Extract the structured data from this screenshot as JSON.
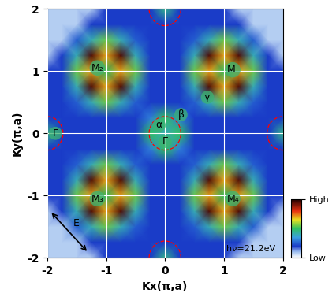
{
  "chart_data": {
    "type": "heatmap",
    "x_label": "Kx(π,a)",
    "y_label": "Ky(π,a)",
    "xlim": [
      -2,
      2
    ],
    "ylim": [
      -2,
      2
    ],
    "xticks": [
      -2,
      -1,
      0,
      1,
      2
    ],
    "yticks": [
      -2,
      -1,
      0,
      1,
      2
    ],
    "grid": true,
    "x": [
      -2,
      -1.75,
      -1.5,
      -1.25,
      -1,
      -0.75,
      -0.5,
      -0.25,
      0,
      0.25,
      0.5,
      0.75,
      1,
      1.25,
      1.5,
      1.75,
      2
    ],
    "y": [
      -2,
      -1.75,
      -1.5,
      -1.25,
      -1,
      -0.75,
      -0.5,
      -0.25,
      0,
      0.25,
      0.5,
      0.75,
      1,
      1.25,
      1.5,
      1.75,
      2
    ],
    "cells": [
      [
        0.08,
        0.08,
        0.08,
        0.08,
        0.2,
        0.2,
        0.2,
        0.2,
        0.45,
        0.2,
        0.2,
        0.2,
        0.2,
        0.08,
        0.08,
        0.08,
        0.08
      ],
      [
        0.08,
        0.08,
        0.08,
        0.2,
        0.2,
        0.2,
        0.2,
        0.2,
        0.2,
        0.2,
        0.2,
        0.2,
        0.2,
        0.2,
        0.08,
        0.08,
        0.08
      ],
      [
        0.08,
        0.08,
        0.25,
        0.4,
        0.55,
        0.4,
        0.25,
        0.2,
        0.2,
        0.2,
        0.25,
        0.4,
        0.55,
        0.4,
        0.25,
        0.08,
        0.08
      ],
      [
        0.08,
        0.2,
        0.4,
        0.95,
        0.7,
        0.95,
        0.4,
        0.2,
        0.2,
        0.2,
        0.4,
        0.95,
        0.7,
        0.95,
        0.4,
        0.2,
        0.08
      ],
      [
        0.2,
        0.2,
        0.55,
        0.7,
        0.5,
        0.7,
        0.55,
        0.2,
        0.2,
        0.2,
        0.55,
        0.7,
        0.5,
        0.7,
        0.55,
        0.2,
        0.2
      ],
      [
        0.2,
        0.2,
        0.4,
        0.95,
        0.7,
        0.95,
        0.4,
        0.2,
        0.2,
        0.2,
        0.4,
        0.95,
        0.7,
        0.95,
        0.4,
        0.2,
        0.2
      ],
      [
        0.2,
        0.2,
        0.25,
        0.4,
        0.55,
        0.4,
        0.25,
        0.2,
        0.2,
        0.2,
        0.25,
        0.4,
        0.55,
        0.4,
        0.25,
        0.2,
        0.2
      ],
      [
        0.2,
        0.2,
        0.2,
        0.2,
        0.2,
        0.2,
        0.2,
        0.3,
        0.5,
        0.3,
        0.2,
        0.2,
        0.2,
        0.2,
        0.2,
        0.2,
        0.2
      ],
      [
        0.45,
        0.2,
        0.2,
        0.2,
        0.2,
        0.2,
        0.2,
        0.5,
        0.4,
        0.5,
        0.2,
        0.2,
        0.2,
        0.2,
        0.2,
        0.2,
        0.45
      ],
      [
        0.2,
        0.2,
        0.2,
        0.2,
        0.2,
        0.2,
        0.2,
        0.3,
        0.5,
        0.3,
        0.2,
        0.2,
        0.2,
        0.2,
        0.2,
        0.2,
        0.2
      ],
      [
        0.2,
        0.2,
        0.25,
        0.4,
        0.55,
        0.4,
        0.25,
        0.2,
        0.2,
        0.2,
        0.25,
        0.4,
        0.55,
        0.4,
        0.25,
        0.2,
        0.2
      ],
      [
        0.2,
        0.2,
        0.4,
        0.95,
        0.7,
        0.95,
        0.4,
        0.2,
        0.2,
        0.2,
        0.4,
        0.95,
        0.7,
        0.95,
        0.4,
        0.2,
        0.2
      ],
      [
        0.2,
        0.2,
        0.55,
        0.7,
        0.5,
        0.7,
        0.55,
        0.2,
        0.2,
        0.2,
        0.55,
        0.7,
        0.5,
        0.7,
        0.55,
        0.2,
        0.2
      ],
      [
        0.08,
        0.2,
        0.4,
        0.95,
        0.7,
        0.95,
        0.4,
        0.2,
        0.2,
        0.2,
        0.4,
        0.95,
        0.7,
        0.95,
        0.4,
        0.2,
        0.08
      ],
      [
        0.08,
        0.08,
        0.25,
        0.4,
        0.55,
        0.4,
        0.25,
        0.2,
        0.2,
        0.2,
        0.25,
        0.4,
        0.55,
        0.4,
        0.25,
        0.08,
        0.08
      ],
      [
        0.08,
        0.08,
        0.08,
        0.2,
        0.2,
        0.2,
        0.2,
        0.2,
        0.2,
        0.2,
        0.2,
        0.2,
        0.2,
        0.2,
        0.08,
        0.08,
        0.08
      ],
      [
        0.08,
        0.08,
        0.08,
        0.08,
        0.2,
        0.2,
        0.2,
        0.2,
        0.45,
        0.2,
        0.2,
        0.2,
        0.2,
        0.08,
        0.08,
        0.08,
        0.08
      ]
    ],
    "colorbar": {
      "range": [
        0,
        1
      ],
      "ticks": [
        {
          "value": 0,
          "label": "Low"
        },
        {
          "value": 1,
          "label": "High"
        }
      ]
    },
    "annotations": [
      "M₁",
      "M₂",
      "M₃",
      "M₄",
      "Γ",
      "Γ",
      "α",
      "β",
      "γ",
      "E",
      "hν=21.2eV"
    ]
  }
}
